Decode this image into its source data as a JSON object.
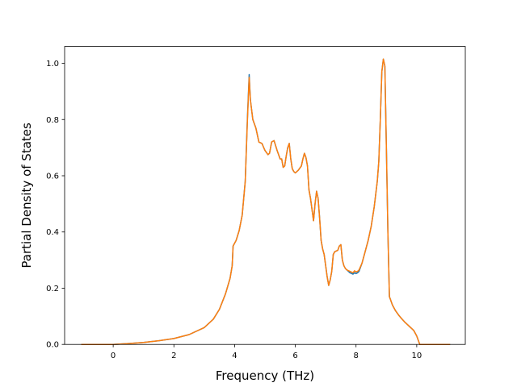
{
  "chart_data": {
    "type": "line",
    "title": "",
    "xlabel": "Frequency (THz)",
    "ylabel": "Partial Density of States",
    "xlim": [
      -1.6,
      11.6
    ],
    "ylim": [
      0.0,
      1.06
    ],
    "x_ticks": [
      0,
      2,
      4,
      6,
      8,
      10
    ],
    "y_ticks": [
      0.0,
      0.2,
      0.4,
      0.6,
      0.8,
      1.0
    ],
    "x_tick_labels": [
      "0",
      "2",
      "4",
      "6",
      "8",
      "10"
    ],
    "y_tick_labels": [
      "0.0",
      "0.2",
      "0.4",
      "0.6",
      "0.8",
      "1.0"
    ],
    "grid": false,
    "legend": "none",
    "series": [
      {
        "color": "#1f77b4",
        "x": [
          -1.05,
          -0.5,
          0.0,
          0.5,
          1.0,
          1.5,
          2.0,
          2.5,
          3.0,
          3.3,
          3.5,
          3.7,
          3.85,
          3.92,
          3.95,
          4.05,
          4.15,
          4.25,
          4.35,
          4.42,
          4.48,
          4.52,
          4.6,
          4.7,
          4.8,
          4.9,
          5.0,
          5.1,
          5.15,
          5.22,
          5.3,
          5.4,
          5.5,
          5.55,
          5.6,
          5.65,
          5.7,
          5.75,
          5.8,
          5.85,
          5.9,
          5.95,
          6.0,
          6.1,
          6.2,
          6.25,
          6.3,
          6.35,
          6.4,
          6.45,
          6.5,
          6.55,
          6.6,
          6.65,
          6.7,
          6.75,
          6.8,
          6.85,
          6.9,
          6.95,
          7.0,
          7.05,
          7.1,
          7.15,
          7.2,
          7.25,
          7.3,
          7.4,
          7.45,
          7.5,
          7.55,
          7.6,
          7.65,
          7.7,
          7.8,
          7.9,
          7.95,
          8.0,
          8.05,
          8.1,
          8.2,
          8.3,
          8.4,
          8.5,
          8.6,
          8.7,
          8.75,
          8.8,
          8.85,
          8.9,
          8.95,
          9.0,
          9.05,
          9.1,
          9.15,
          9.2,
          9.3,
          9.4,
          9.5,
          9.6,
          9.7,
          9.8,
          9.9,
          10.0,
          10.1,
          10.15,
          10.3,
          11.1
        ],
        "values": [
          0.0,
          0.0,
          0.0,
          0.003,
          0.007,
          0.013,
          0.021,
          0.035,
          0.06,
          0.09,
          0.125,
          0.18,
          0.235,
          0.28,
          0.35,
          0.37,
          0.405,
          0.46,
          0.58,
          0.8,
          0.96,
          0.87,
          0.8,
          0.77,
          0.72,
          0.715,
          0.69,
          0.675,
          0.68,
          0.72,
          0.725,
          0.69,
          0.66,
          0.66,
          0.63,
          0.635,
          0.67,
          0.7,
          0.715,
          0.66,
          0.625,
          0.615,
          0.61,
          0.62,
          0.635,
          0.66,
          0.68,
          0.665,
          0.635,
          0.55,
          0.52,
          0.48,
          0.44,
          0.5,
          0.545,
          0.52,
          0.45,
          0.37,
          0.34,
          0.32,
          0.28,
          0.24,
          0.21,
          0.23,
          0.26,
          0.32,
          0.33,
          0.335,
          0.35,
          0.355,
          0.3,
          0.28,
          0.27,
          0.265,
          0.255,
          0.25,
          0.255,
          0.252,
          0.255,
          0.26,
          0.29,
          0.33,
          0.37,
          0.42,
          0.49,
          0.58,
          0.65,
          0.8,
          0.97,
          1.015,
          0.99,
          0.7,
          0.4,
          0.17,
          0.155,
          0.14,
          0.12,
          0.105,
          0.092,
          0.08,
          0.07,
          0.06,
          0.05,
          0.03,
          0.0,
          0.0,
          0.0,
          0.0
        ]
      },
      {
        "color": "#ff7f0e",
        "x": [
          -1.05,
          -0.5,
          0.0,
          0.5,
          1.0,
          1.5,
          2.0,
          2.5,
          3.0,
          3.3,
          3.5,
          3.7,
          3.85,
          3.92,
          3.95,
          4.05,
          4.15,
          4.25,
          4.35,
          4.42,
          4.48,
          4.52,
          4.6,
          4.7,
          4.8,
          4.9,
          5.0,
          5.1,
          5.15,
          5.22,
          5.3,
          5.4,
          5.5,
          5.55,
          5.6,
          5.65,
          5.7,
          5.75,
          5.8,
          5.85,
          5.9,
          5.95,
          6.0,
          6.1,
          6.2,
          6.25,
          6.3,
          6.35,
          6.4,
          6.45,
          6.5,
          6.55,
          6.6,
          6.65,
          6.7,
          6.75,
          6.8,
          6.85,
          6.9,
          6.95,
          7.0,
          7.05,
          7.1,
          7.15,
          7.2,
          7.25,
          7.3,
          7.4,
          7.45,
          7.5,
          7.55,
          7.6,
          7.65,
          7.7,
          7.8,
          7.9,
          7.95,
          8.0,
          8.05,
          8.1,
          8.2,
          8.3,
          8.4,
          8.5,
          8.6,
          8.7,
          8.75,
          8.8,
          8.85,
          8.9,
          8.95,
          9.0,
          9.05,
          9.1,
          9.15,
          9.2,
          9.3,
          9.4,
          9.5,
          9.6,
          9.7,
          9.8,
          9.9,
          10.0,
          10.1,
          10.15,
          10.3,
          11.1
        ],
        "values": [
          0.0,
          0.0,
          0.0,
          0.003,
          0.007,
          0.013,
          0.021,
          0.035,
          0.06,
          0.09,
          0.125,
          0.18,
          0.235,
          0.28,
          0.35,
          0.37,
          0.405,
          0.46,
          0.58,
          0.79,
          0.95,
          0.87,
          0.8,
          0.77,
          0.72,
          0.715,
          0.69,
          0.675,
          0.68,
          0.72,
          0.725,
          0.69,
          0.66,
          0.66,
          0.63,
          0.635,
          0.67,
          0.7,
          0.715,
          0.66,
          0.625,
          0.615,
          0.61,
          0.62,
          0.635,
          0.66,
          0.68,
          0.665,
          0.635,
          0.55,
          0.52,
          0.48,
          0.44,
          0.5,
          0.545,
          0.52,
          0.45,
          0.37,
          0.34,
          0.32,
          0.28,
          0.24,
          0.21,
          0.23,
          0.26,
          0.32,
          0.33,
          0.335,
          0.35,
          0.355,
          0.3,
          0.28,
          0.27,
          0.265,
          0.26,
          0.255,
          0.262,
          0.258,
          0.26,
          0.265,
          0.29,
          0.33,
          0.37,
          0.42,
          0.49,
          0.58,
          0.65,
          0.8,
          0.97,
          1.015,
          0.99,
          0.7,
          0.4,
          0.17,
          0.155,
          0.14,
          0.12,
          0.105,
          0.092,
          0.08,
          0.07,
          0.06,
          0.05,
          0.03,
          0.0,
          0.0,
          0.0,
          0.0
        ]
      }
    ]
  }
}
